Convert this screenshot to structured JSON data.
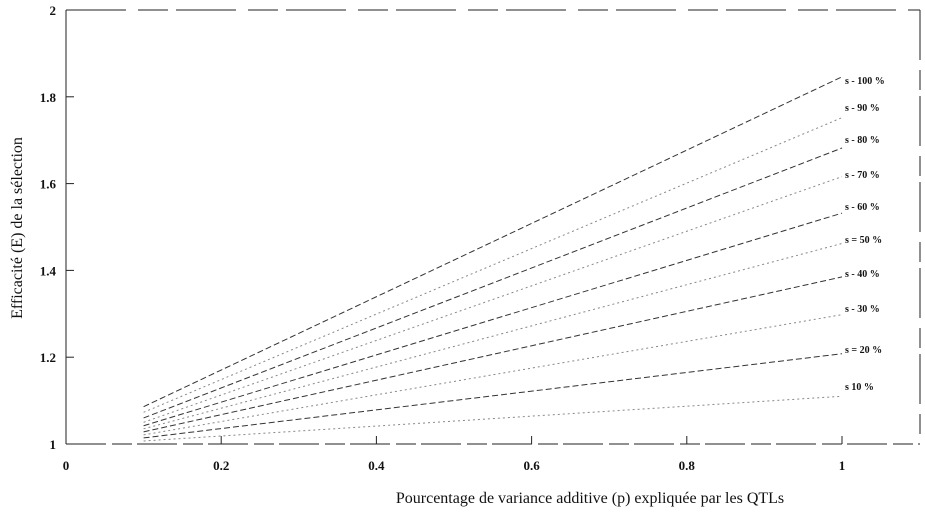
{
  "chart_data": {
    "type": "line",
    "title": "",
    "xlabel": "Pourcentage de variance additive (p) expliquée par les QTLs",
    "ylabel": "Efficacité (E) de la sélection",
    "xlim": [
      0,
      1
    ],
    "ylim": [
      1,
      2
    ],
    "x_ticks": [
      0,
      0.2,
      0.4,
      0.6,
      0.8,
      1
    ],
    "x_tick_labels": [
      "0",
      "0.2",
      "0.4",
      "0.6",
      "0.8",
      "1"
    ],
    "y_ticks": [
      1,
      1.2,
      1.4,
      1.6,
      1.8,
      2
    ],
    "y_tick_labels": [
      "1",
      "1.2",
      "1.4",
      "1.6",
      "1.8",
      "2"
    ],
    "grid": false,
    "legend": "labels at line ends, right",
    "x": [
      0.1,
      1
    ],
    "series": [
      {
        "name": "s - 100 %",
        "values": [
          1.086,
          1.846
        ]
      },
      {
        "name": "s - 90 %",
        "values": [
          1.073,
          1.752
        ]
      },
      {
        "name": "s - 80 %",
        "values": [
          1.06,
          1.682
        ]
      },
      {
        "name": "s - 70 %",
        "values": [
          1.05,
          1.616
        ]
      },
      {
        "name": "s - 60 %",
        "values": [
          1.042,
          1.532
        ]
      },
      {
        "name": "s = 50 %",
        "values": [
          1.035,
          1.462
        ]
      },
      {
        "name": "s - 40 %",
        "values": [
          1.028,
          1.385
        ]
      },
      {
        "name": "s - 30 %",
        "values": [
          1.021,
          1.298
        ]
      },
      {
        "name": "s = 20 %",
        "values": [
          1.014,
          1.208
        ]
      },
      {
        "name": "s 10 %",
        "values": [
          1.007,
          1.11
        ]
      }
    ]
  }
}
